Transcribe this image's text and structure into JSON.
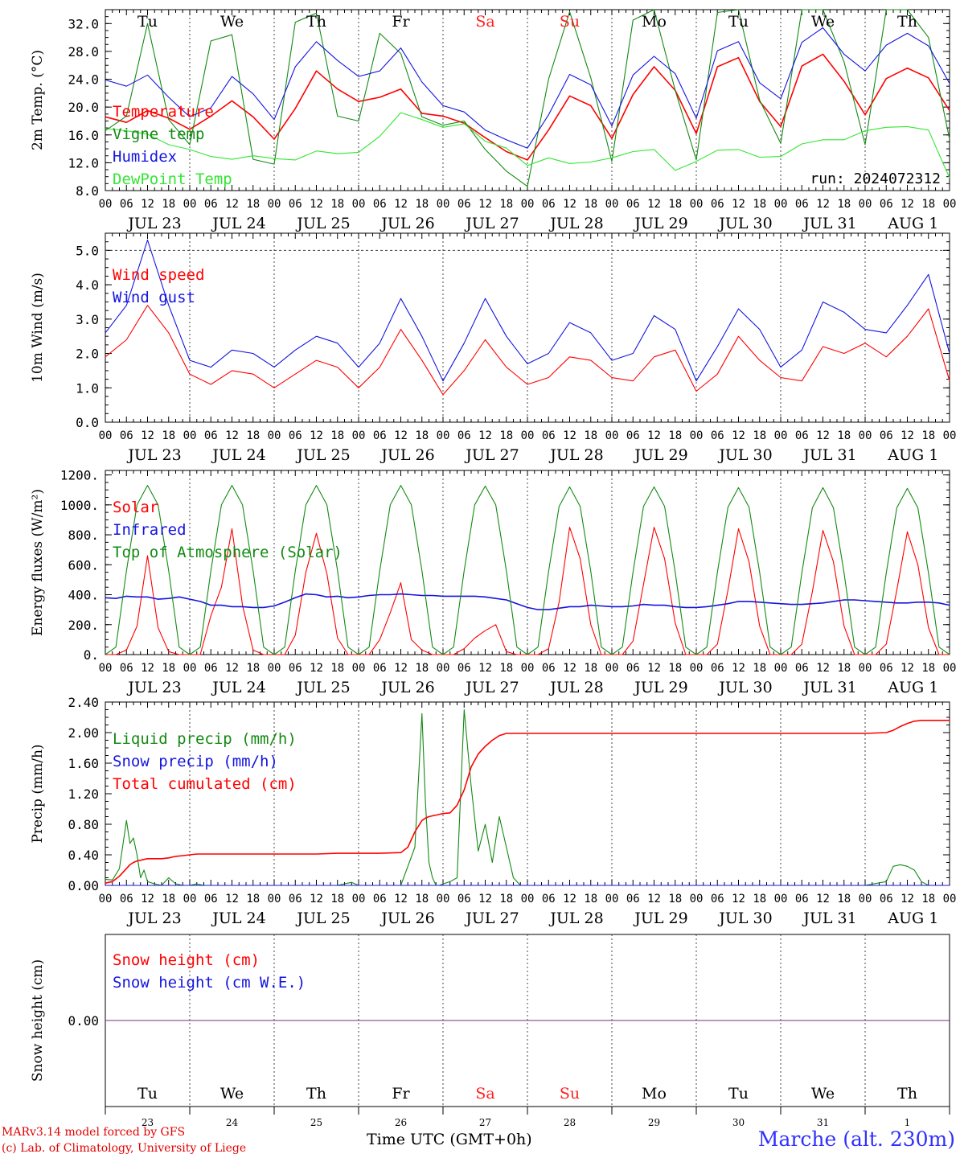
{
  "colors": {
    "red": "#ff0000",
    "green": "#138a13",
    "blue": "#1414e0",
    "lightgreen": "#33e633",
    "purple": "#7a2a8a",
    "weekend": "#ff2020"
  },
  "days": {
    "top": [
      "Tu",
      "We",
      "Th",
      "Fr",
      "Sa",
      "Su",
      "Mo",
      "Tu",
      "We",
      "Th"
    ],
    "weekend_index": [
      4,
      5
    ],
    "numbers": [
      "23",
      "24",
      "25",
      "26",
      "27",
      "28",
      "29",
      "30",
      "31",
      "1"
    ],
    "dates": [
      "JUL 23",
      "JUL 24",
      "JUL 25",
      "JUL 26",
      "JUL 27",
      "JUL 28",
      "JUL 29",
      "JUL 30",
      "JUL 31",
      "AUG  1"
    ],
    "hour_labels": [
      "00",
      "06",
      "12",
      "18"
    ],
    "final_hour": "00"
  },
  "footer": {
    "model": "MARv3.14 model forced by GFS",
    "lab": "(c) Lab. of Climatology, University of Liege",
    "time_axis": "Time UTC (GMT+0h)",
    "station": "Marche (alt. 230m)"
  },
  "chart_data": [
    {
      "type": "line",
      "ylabel": "2m Temp. (°C)",
      "ylim": [
        8,
        34
      ],
      "yticks": [
        "8.0",
        "12.0",
        "16.0",
        "20.0",
        "24.0",
        "28.0",
        "32.0"
      ],
      "ytick_values": [
        8,
        12,
        16,
        20,
        24,
        28,
        32
      ],
      "annotation": "run: 2024072312",
      "x_hours": [
        0,
        6,
        12,
        18,
        24,
        30,
        36,
        42,
        48,
        54,
        60,
        66,
        72,
        78,
        84,
        90,
        96,
        102,
        108,
        114,
        120,
        126,
        132,
        138,
        144,
        150,
        156,
        162,
        168,
        174,
        180,
        186,
        192,
        198,
        204,
        210,
        216,
        222,
        228,
        234,
        240
      ],
      "series": [
        {
          "name": "Temperature",
          "color": "red",
          "values": [
            18.6,
            17.8,
            19.5,
            18.4,
            16.8,
            18.7,
            20.9,
            18.6,
            15.4,
            19.8,
            25.2,
            22.6,
            20.8,
            21.4,
            22.6,
            19.1,
            18.7,
            17.7,
            15.6,
            13.6,
            12.4,
            16.7,
            21.6,
            20.2,
            15.5,
            21.8,
            25.8,
            22.4,
            16.2,
            25.8,
            27.1,
            20.8,
            17.2,
            25.9,
            27.6,
            23.7,
            18.9,
            24.1,
            25.6,
            24.2,
            19.5
          ]
        },
        {
          "name": "Vigne temp",
          "color": "green",
          "values": [
            16.6,
            18.7,
            32.0,
            18.2,
            14.6,
            29.5,
            30.4,
            12.5,
            11.8,
            32.2,
            33.5,
            18.7,
            18.0,
            30.6,
            27.7,
            18.6,
            17.4,
            18.0,
            13.9,
            10.8,
            8.6,
            24.0,
            33.7,
            24.2,
            12.2,
            32.5,
            34.0,
            22.4,
            12.4,
            33.6,
            34.0,
            21.0,
            14.8,
            34.0,
            34.0,
            26.5,
            14.6,
            34.0,
            34.0,
            30.0,
            15.4
          ]
        },
        {
          "name": "Humidex",
          "color": "blue",
          "values": [
            23.9,
            23.0,
            24.6,
            21.4,
            18.6,
            19.9,
            24.4,
            21.9,
            18.2,
            25.8,
            29.4,
            26.7,
            24.4,
            25.2,
            28.5,
            23.6,
            20.2,
            19.3,
            16.7,
            15.3,
            14.1,
            18.9,
            24.7,
            23.2,
            17.3,
            24.6,
            27.3,
            24.8,
            18.4,
            28.1,
            29.4,
            23.5,
            21.2,
            29.3,
            31.4,
            27.6,
            25.2,
            28.9,
            30.6,
            28.8,
            23.4
          ]
        },
        {
          "name": "DewPoint Temp",
          "color": "lightgreen",
          "values": [
            16.9,
            16.6,
            16.1,
            14.6,
            13.9,
            12.9,
            12.5,
            13.0,
            12.6,
            12.4,
            13.7,
            13.3,
            13.5,
            15.8,
            19.2,
            18.2,
            17.1,
            17.6,
            15.1,
            14.1,
            11.6,
            12.7,
            11.9,
            12.1,
            12.7,
            13.6,
            13.9,
            10.9,
            12.2,
            13.8,
            13.9,
            12.8,
            12.9,
            14.7,
            15.3,
            15.3,
            16.6,
            17.1,
            17.2,
            16.7,
            9.8
          ]
        }
      ]
    },
    {
      "type": "line",
      "ylabel": "10m Wind (m/s)",
      "ylim": [
        0,
        5.5
      ],
      "yticks": [
        "0.0",
        "1.0",
        "2.0",
        "3.0",
        "4.0",
        "5.0"
      ],
      "ytick_values": [
        0,
        1,
        2,
        3,
        4,
        5
      ],
      "x_hours": [
        0,
        6,
        12,
        18,
        24,
        30,
        36,
        42,
        48,
        54,
        60,
        66,
        72,
        78,
        84,
        90,
        96,
        102,
        108,
        114,
        120,
        126,
        132,
        138,
        144,
        150,
        156,
        162,
        168,
        174,
        180,
        186,
        192,
        198,
        204,
        210,
        216,
        222,
        228,
        234,
        240
      ],
      "series": [
        {
          "name": "Wind speed",
          "color": "red",
          "values": [
            1.9,
            2.4,
            3.4,
            2.6,
            1.4,
            1.1,
            1.5,
            1.4,
            1.0,
            1.4,
            1.8,
            1.6,
            1.0,
            1.6,
            2.7,
            1.8,
            0.8,
            1.5,
            2.4,
            1.6,
            1.1,
            1.3,
            1.9,
            1.8,
            1.3,
            1.2,
            1.9,
            2.1,
            0.9,
            1.4,
            2.5,
            1.8,
            1.3,
            1.2,
            2.2,
            2.0,
            2.3,
            1.9,
            2.5,
            3.3,
            1.2
          ]
        },
        {
          "name": "Wind gust",
          "color": "blue",
          "values": [
            2.6,
            3.4,
            5.3,
            3.4,
            1.8,
            1.6,
            2.1,
            2.0,
            1.6,
            2.1,
            2.5,
            2.3,
            1.6,
            2.3,
            3.6,
            2.5,
            1.2,
            2.3,
            3.6,
            2.5,
            1.7,
            2.0,
            2.9,
            2.6,
            1.8,
            2.0,
            3.1,
            2.7,
            1.2,
            2.2,
            3.3,
            2.7,
            1.6,
            2.1,
            3.5,
            3.2,
            2.7,
            2.6,
            3.4,
            4.3,
            2.0
          ]
        }
      ]
    },
    {
      "type": "line",
      "ylabel": "Energy fluxes (W/m²)",
      "ylim": [
        0,
        1230
      ],
      "yticks": [
        "0.",
        "200.",
        "400.",
        "600.",
        "800.",
        "1000.",
        "1200."
      ],
      "ytick_values": [
        0,
        200,
        400,
        600,
        800,
        1000,
        1200
      ],
      "x_hours": [
        0,
        3,
        6,
        9,
        12,
        15,
        18,
        21,
        24,
        27,
        30,
        33,
        36,
        39,
        42,
        45,
        48,
        51,
        54,
        57,
        60,
        63,
        66,
        69,
        72,
        75,
        78,
        81,
        84,
        87,
        90,
        93,
        96,
        99,
        102,
        105,
        108,
        111,
        114,
        117,
        120,
        123,
        126,
        129,
        132,
        135,
        138,
        141,
        144,
        147,
        150,
        153,
        156,
        159,
        162,
        165,
        168,
        171,
        174,
        177,
        180,
        183,
        186,
        189,
        192,
        195,
        198,
        201,
        204,
        207,
        210,
        213,
        216,
        219,
        222,
        225,
        228,
        231,
        234,
        237,
        240
      ],
      "series": [
        {
          "name": "Solar",
          "color": "red",
          "values": [
            0,
            0,
            30,
            190,
            660,
            180,
            20,
            0,
            0,
            0,
            260,
            450,
            840,
            330,
            30,
            0,
            0,
            0,
            130,
            550,
            810,
            540,
            110,
            0,
            0,
            0,
            100,
            280,
            480,
            100,
            30,
            0,
            0,
            0,
            40,
            110,
            160,
            200,
            20,
            0,
            0,
            0,
            40,
            350,
            850,
            640,
            200,
            0,
            0,
            0,
            90,
            470,
            850,
            640,
            210,
            0,
            0,
            0,
            70,
            430,
            840,
            620,
            190,
            0,
            0,
            0,
            70,
            420,
            830,
            620,
            190,
            0,
            0,
            0,
            70,
            430,
            820,
            600,
            180,
            0,
            0
          ]
        },
        {
          "name": "Infrared",
          "color": "blue",
          "values": [
            380,
            375,
            390,
            385,
            385,
            370,
            375,
            385,
            370,
            355,
            330,
            330,
            320,
            320,
            315,
            315,
            325,
            350,
            380,
            405,
            400,
            385,
            390,
            380,
            385,
            395,
            400,
            400,
            405,
            400,
            395,
            395,
            390,
            390,
            390,
            390,
            385,
            375,
            365,
            340,
            315,
            300,
            300,
            310,
            320,
            320,
            330,
            325,
            320,
            320,
            325,
            335,
            330,
            330,
            320,
            315,
            315,
            320,
            330,
            340,
            355,
            355,
            350,
            345,
            340,
            335,
            335,
            340,
            345,
            355,
            365,
            365,
            360,
            355,
            350,
            345,
            345,
            350,
            350,
            345,
            330
          ]
        },
        {
          "name": "Top of Atmosphere (Solar)",
          "color": "green",
          "values": [
            0,
            50,
            560,
            1000,
            1130,
            1000,
            560,
            50,
            0,
            50,
            560,
            1000,
            1130,
            1000,
            560,
            50,
            0,
            50,
            560,
            1000,
            1130,
            1000,
            560,
            50,
            0,
            50,
            560,
            1000,
            1130,
            1000,
            560,
            50,
            0,
            50,
            560,
            1000,
            1125,
            1000,
            560,
            50,
            0,
            50,
            555,
            990,
            1120,
            990,
            555,
            50,
            0,
            50,
            550,
            990,
            1120,
            990,
            550,
            50,
            0,
            50,
            550,
            985,
            1115,
            985,
            550,
            50,
            0,
            50,
            545,
            980,
            1115,
            980,
            545,
            50,
            0,
            50,
            545,
            980,
            1110,
            980,
            545,
            50,
            0
          ]
        }
      ]
    },
    {
      "type": "line",
      "ylabel": "Precip (mm/h)",
      "ylim": [
        0,
        2.4
      ],
      "yticks": [
        "0.00",
        "0.40",
        "0.80",
        "1.20",
        "1.60",
        "2.00",
        "2.40"
      ],
      "ytick_values": [
        0,
        0.4,
        0.8,
        1.2,
        1.6,
        2.0,
        2.4
      ],
      "x_hours": [
        0,
        2,
        4,
        6,
        7,
        8,
        9,
        10,
        11,
        12,
        14,
        16,
        18,
        20,
        22,
        24,
        26,
        28,
        30,
        36,
        42,
        48,
        54,
        60,
        66,
        70,
        72,
        78,
        84,
        86,
        88,
        90,
        91,
        92,
        93,
        94,
        95,
        96,
        98,
        100,
        102,
        104,
        106,
        108,
        110,
        112,
        114,
        116,
        118,
        120,
        132,
        144,
        156,
        168,
        180,
        192,
        204,
        216,
        222,
        224,
        226,
        228,
        230,
        232,
        234,
        236,
        240
      ],
      "series": [
        {
          "name": "Liquid precip (mm/h)",
          "color": "green",
          "values": [
            0.08,
            0.07,
            0.22,
            0.85,
            0.55,
            0.62,
            0.4,
            0.1,
            0.2,
            0.05,
            0.02,
            0.0,
            0.1,
            0.02,
            0.0,
            0.0,
            0.02,
            0.0,
            0.0,
            0.0,
            0.0,
            0.0,
            0.0,
            0.0,
            0.0,
            0.04,
            0.0,
            0.0,
            0.0,
            0.25,
            0.5,
            2.25,
            1.1,
            0.3,
            0.1,
            0.0,
            0.0,
            0.02,
            0.05,
            0.1,
            2.3,
            1.3,
            0.45,
            0.8,
            0.3,
            0.9,
            0.5,
            0.1,
            0.0,
            0.0,
            0.0,
            0.0,
            0.0,
            0.0,
            0.0,
            0.0,
            0.0,
            0.0,
            0.05,
            0.25,
            0.27,
            0.25,
            0.2,
            0.05,
            0.0,
            0.0,
            0.0
          ]
        },
        {
          "name": "Snow precip (mm/h)",
          "color": "blue",
          "values": [
            0,
            0,
            0,
            0,
            0,
            0,
            0,
            0,
            0,
            0,
            0,
            0,
            0,
            0,
            0,
            0,
            0,
            0,
            0,
            0,
            0,
            0,
            0,
            0,
            0,
            0,
            0,
            0,
            0,
            0,
            0,
            0,
            0,
            0,
            0,
            0,
            0,
            0,
            0,
            0,
            0,
            0,
            0,
            0,
            0,
            0,
            0,
            0,
            0,
            0,
            0,
            0,
            0,
            0,
            0,
            0,
            0,
            0,
            0,
            0,
            0,
            0,
            0,
            0,
            0,
            0,
            0
          ]
        },
        {
          "name": "Total cumulated (cm)",
          "color": "red",
          "values": [
            0.03,
            0.05,
            0.12,
            0.22,
            0.27,
            0.3,
            0.32,
            0.33,
            0.34,
            0.35,
            0.35,
            0.35,
            0.36,
            0.38,
            0.39,
            0.4,
            0.41,
            0.41,
            0.41,
            0.41,
            0.41,
            0.41,
            0.41,
            0.41,
            0.42,
            0.42,
            0.42,
            0.42,
            0.43,
            0.5,
            0.7,
            0.85,
            0.88,
            0.9,
            0.91,
            0.92,
            0.93,
            0.94,
            0.95,
            1.05,
            1.25,
            1.55,
            1.72,
            1.82,
            1.9,
            1.96,
            1.99,
            1.99,
            1.99,
            1.99,
            1.99,
            1.99,
            1.99,
            1.99,
            1.99,
            1.99,
            1.99,
            1.99,
            2.0,
            2.03,
            2.08,
            2.12,
            2.15,
            2.16,
            2.16,
            2.16,
            2.16
          ]
        }
      ]
    },
    {
      "type": "line",
      "ylabel": "Snow height (cm)",
      "ylim": [
        -1,
        1
      ],
      "yticks": [
        "0.00"
      ],
      "ytick_values": [
        0
      ],
      "x_hours": [
        0,
        240
      ],
      "series": [
        {
          "name": "Snow height (cm)",
          "color": "red",
          "values": [
            0,
            0
          ]
        },
        {
          "name": "Snow height (cm W.E.)",
          "color": "blue",
          "values": [
            0,
            0
          ]
        }
      ]
    }
  ]
}
